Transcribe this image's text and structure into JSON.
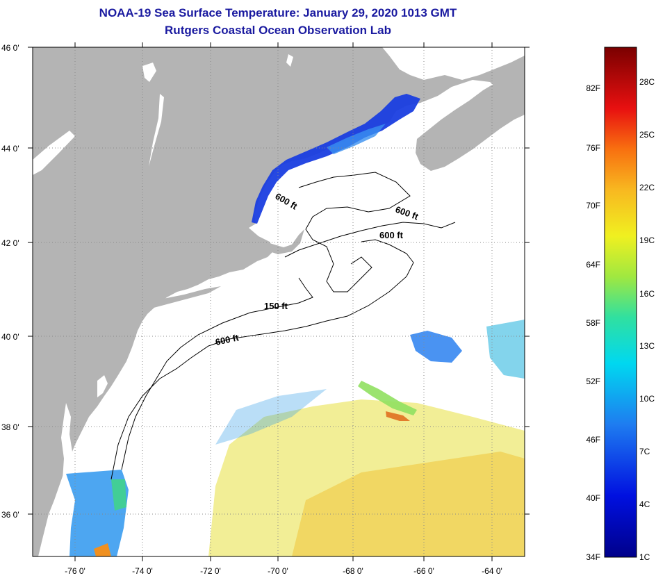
{
  "title": "NOAA-19 Sea Surface Temperature:  January 29, 2020 1013 GMT",
  "subtitle": "Rutgers Coastal Ocean Observation Lab",
  "latitude_labels": [
    "46 0'",
    "44 0'",
    "42 0'",
    "40 0'",
    "38 0'",
    "36 0'"
  ],
  "longitude_labels": [
    "-76 0'",
    "-74 0'",
    "-72 0'",
    "-70 0'",
    "-68 0'",
    "-66 0'",
    "-64 0'"
  ],
  "contour_labels": [
    "600 ft",
    "600 ft",
    "600 ft",
    "150 ft",
    "600 ft"
  ],
  "colorbar": {
    "fahrenheit": [
      "82F",
      "76F",
      "70F",
      "64F",
      "58F",
      "52F",
      "46F",
      "40F",
      "34F"
    ],
    "celsius": [
      "28C",
      "25C",
      "22C",
      "19C",
      "16C",
      "13C",
      "10C",
      "7C",
      "4C",
      "1C"
    ]
  },
  "colors": {
    "land": "#b4b4b4",
    "water": "#ffffff",
    "title": "#1a1aa0"
  }
}
